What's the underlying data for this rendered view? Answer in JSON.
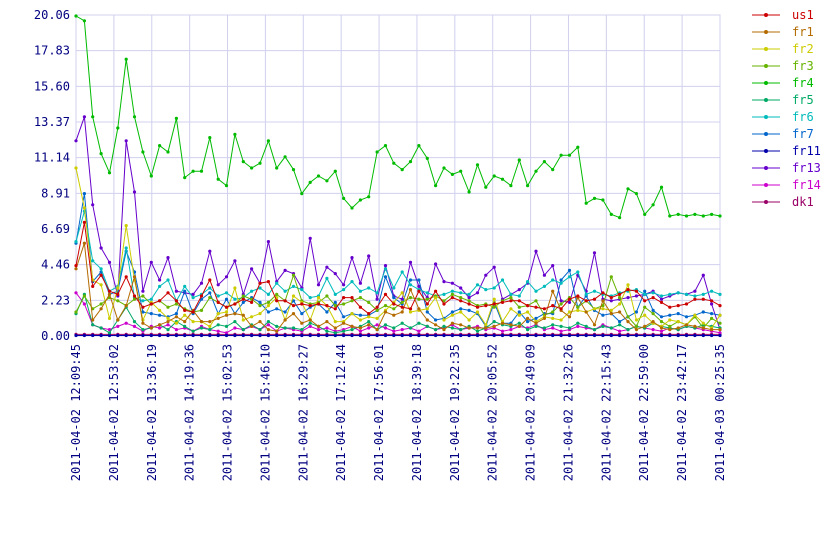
{
  "chart_data": {
    "type": "line",
    "ylim": [
      0,
      20.06
    ],
    "y_ticks": [
      "0.00",
      "2.23",
      "4.46",
      "6.69",
      "8.91",
      "11.14",
      "13.37",
      "15.60",
      "17.83",
      "20.06"
    ],
    "x_labels": [
      "2011-04-02 12:09:45",
      "2011-04-02 12:53:02",
      "2011-04-02 13:36:19",
      "2011-04-02 14:19:36",
      "2011-04-02 15:02:53",
      "2011-04-02 15:46:10",
      "2011-04-02 16:29:27",
      "2011-04-02 17:12:44",
      "2011-04-02 17:56:01",
      "2011-04-02 18:39:18",
      "2011-04-02 19:22:35",
      "2011-04-02 20:05:52",
      "2011-04-02 20:49:09",
      "2011-04-02 21:32:26",
      "2011-04-02 22:15:43",
      "2011-04-02 22:59:00",
      "2011-04-02 23:42:17",
      "2011-04-03 00:25:35"
    ],
    "points_per_series": 78,
    "grid": true,
    "legend_position": "right",
    "series": [
      {
        "name": "us1",
        "color": "#cc0000",
        "values": [
          4.4,
          7.1,
          3.1,
          3.8,
          2.8,
          2.6,
          3.7,
          2.5,
          1.8,
          2.0,
          2.2,
          2.7,
          2.2,
          1.6,
          1.5,
          2.5,
          3.5,
          2.1,
          1.8,
          2.0,
          2.3,
          2.1,
          3.3,
          3.4,
          2.2,
          2.2,
          1.9,
          2.0,
          1.9,
          2.0,
          1.9,
          1.7,
          2.4,
          2.4,
          1.8,
          1.4,
          1.8,
          2.6,
          2.0,
          1.8,
          1.7,
          2.8,
          2.0,
          2.8,
          2.0,
          2.4,
          2.2,
          2.0,
          1.8,
          1.9,
          2.0,
          2.1,
          2.2,
          2.2,
          1.9,
          1.8,
          1.7,
          1.9,
          1.7,
          2.3,
          2.5,
          2.2,
          2.3,
          2.7,
          2.4,
          2.6,
          2.9,
          2.8,
          2.2,
          2.4,
          2.1,
          1.8,
          1.9,
          2.0,
          2.3,
          2.3,
          2.2,
          1.9
        ]
      },
      {
        "name": "fr1",
        "color": "#b36b00",
        "values": [
          4.2,
          5.8,
          1.0,
          1.7,
          2.6,
          1.0,
          1.9,
          3.7,
          0.8,
          0.5,
          0.7,
          0.9,
          1.2,
          0.9,
          1.6,
          0.9,
          0.9,
          1.1,
          1.3,
          1.4,
          1.3,
          0.6,
          0.9,
          0.4,
          0.3,
          1.0,
          1.4,
          0.8,
          1.0,
          0.6,
          0.9,
          0.5,
          0.8,
          0.6,
          0.5,
          0.7,
          0.4,
          1.5,
          1.3,
          1.5,
          2.9,
          1.7,
          1.0,
          0.7,
          0.4,
          0.8,
          0.7,
          0.5,
          0.5,
          0.5,
          0.6,
          0.8,
          0.7,
          0.6,
          1.1,
          0.8,
          1.1,
          2.8,
          1.6,
          1.2,
          2.4,
          1.5,
          0.7,
          2.2,
          1.4,
          1.5,
          0.9,
          0.4,
          0.6,
          0.9,
          0.5,
          0.4,
          0.5,
          0.7,
          0.6,
          0.5,
          0.4,
          0.4
        ]
      },
      {
        "name": "fr2",
        "color": "#cccc00",
        "values": [
          10.5,
          8.0,
          3.5,
          3.2,
          1.1,
          3.0,
          6.9,
          3.5,
          1.0,
          2.1,
          1.6,
          1.1,
          0.8,
          1.3,
          0.9,
          0.9,
          0.6,
          1.4,
          1.5,
          3.0,
          1.0,
          1.2,
          1.4,
          1.9,
          2.4,
          1.0,
          2.5,
          2.1,
          1.0,
          2.4,
          1.9,
          0.9,
          0.9,
          1.4,
          1.0,
          1.2,
          1.1,
          1.6,
          2.1,
          2.7,
          1.5,
          1.6,
          1.7,
          2.4,
          1.0,
          1.3,
          1.5,
          1.0,
          1.5,
          0.7,
          2.3,
          0.9,
          1.7,
          1.3,
          1.5,
          0.9,
          1.2,
          1.1,
          1.0,
          1.5,
          1.6,
          1.5,
          1.7,
          1.7,
          1.6,
          2.0,
          3.2,
          1.0,
          1.3,
          0.8,
          0.6,
          1.0,
          0.9,
          0.7,
          1.3,
          0.8,
          0.5,
          1.3
        ]
      },
      {
        "name": "fr3",
        "color": "#66b300",
        "values": [
          1.5,
          2.5,
          1.7,
          2.0,
          2.4,
          2.2,
          1.9,
          2.3,
          2.5,
          2.0,
          2.2,
          1.8,
          2.0,
          1.7,
          1.5,
          1.6,
          2.4,
          2.1,
          1.8,
          2.0,
          2.5,
          2.3,
          1.9,
          2.1,
          2.6,
          2.2,
          3.8,
          2.2,
          2.0,
          2.1,
          2.5,
          1.9,
          2.0,
          2.2,
          2.4,
          2.1,
          1.6,
          1.9,
          1.7,
          2.1,
          2.4,
          2.3,
          2.3,
          2.5,
          2.2,
          2.6,
          2.4,
          2.2,
          1.9,
          2.0,
          1.8,
          2.2,
          2.4,
          1.8,
          1.9,
          2.2,
          1.3,
          1.5,
          2.0,
          2.4,
          1.8,
          2.2,
          1.7,
          1.9,
          3.7,
          2.4,
          1.2,
          0.6,
          1.8,
          1.4,
          0.9,
          0.6,
          0.9,
          0.7,
          1.2,
          0.5,
          1.1,
          0.8
        ]
      },
      {
        "name": "fr4",
        "color": "#00bb00",
        "values": [
          20.0,
          19.7,
          13.7,
          11.4,
          10.2,
          13.0,
          17.3,
          13.7,
          11.5,
          10.0,
          11.9,
          11.5,
          13.6,
          9.9,
          10.3,
          10.3,
          12.4,
          9.8,
          9.4,
          12.6,
          10.9,
          10.5,
          10.8,
          12.2,
          10.5,
          11.2,
          10.4,
          8.9,
          9.6,
          10.0,
          9.7,
          10.3,
          8.6,
          8.0,
          8.5,
          8.7,
          11.5,
          11.9,
          10.8,
          10.4,
          10.9,
          11.9,
          11.1,
          9.4,
          10.5,
          10.1,
          10.3,
          9.0,
          10.7,
          9.3,
          10.0,
          9.8,
          9.4,
          11.0,
          9.4,
          10.3,
          10.9,
          10.4,
          11.3,
          11.3,
          11.8,
          8.3,
          8.6,
          8.5,
          7.6,
          7.4,
          9.2,
          8.9,
          7.6,
          8.2,
          9.3,
          7.5,
          7.6,
          7.5,
          7.6,
          7.5,
          7.6,
          7.5
        ]
      },
      {
        "name": "fr5",
        "color": "#00aa66",
        "values": [
          1.4,
          2.6,
          0.7,
          0.5,
          0.2,
          1.0,
          1.8,
          0.9,
          0.4,
          0.5,
          0.7,
          0.4,
          0.9,
          0.6,
          0.3,
          0.5,
          0.4,
          0.7,
          0.6,
          0.9,
          0.4,
          0.7,
          0.4,
          0.9,
          0.6,
          0.5,
          0.5,
          0.4,
          0.8,
          0.6,
          0.3,
          0.2,
          0.3,
          0.4,
          0.6,
          0.9,
          0.4,
          0.7,
          0.5,
          0.8,
          0.5,
          0.8,
          0.6,
          0.4,
          0.6,
          0.5,
          0.4,
          0.6,
          0.3,
          0.5,
          0.9,
          0.7,
          0.6,
          0.8,
          0.4,
          0.6,
          0.5,
          0.7,
          0.6,
          0.5,
          0.8,
          0.6,
          0.4,
          0.6,
          0.5,
          0.7,
          0.4,
          0.6,
          0.5,
          0.8,
          0.6,
          0.5,
          0.4,
          0.6,
          0.5,
          0.7,
          0.6,
          0.5
        ]
      },
      {
        "name": "fr6",
        "color": "#00bbbb",
        "values": [
          5.9,
          7.8,
          4.7,
          4.2,
          2.8,
          3.1,
          5.5,
          2.4,
          2.2,
          2.3,
          3.1,
          3.5,
          2.2,
          3.1,
          2.4,
          2.6,
          3.0,
          2.5,
          2.7,
          2.3,
          2.4,
          2.8,
          3.0,
          2.6,
          3.3,
          2.8,
          3.1,
          2.9,
          2.4,
          2.5,
          3.6,
          2.6,
          2.9,
          3.4,
          2.8,
          3.0,
          2.7,
          4.2,
          3.0,
          4.0,
          3.2,
          2.9,
          2.7,
          2.5,
          2.6,
          2.8,
          2.7,
          2.6,
          3.2,
          2.9,
          3.0,
          3.5,
          2.6,
          2.5,
          3.4,
          2.8,
          3.1,
          3.5,
          3.3,
          3.7,
          4.0,
          2.6,
          2.8,
          2.6,
          2.5,
          2.7,
          2.8,
          2.9,
          2.6,
          2.7,
          2.5,
          2.6,
          2.7,
          2.6,
          2.5,
          2.6,
          2.8,
          2.6
        ]
      },
      {
        "name": "fr7",
        "color": "#0066cc",
        "values": [
          5.8,
          8.9,
          3.4,
          4.0,
          2.6,
          2.8,
          5.3,
          4.0,
          1.5,
          1.4,
          1.3,
          1.2,
          1.4,
          2.8,
          1.4,
          2.3,
          2.7,
          1.4,
          2.3,
          1.4,
          2.1,
          2.4,
          2.1,
          1.5,
          1.7,
          1.5,
          2.2,
          1.4,
          1.8,
          2.0,
          1.5,
          2.1,
          1.2,
          1.4,
          1.3,
          1.3,
          1.6,
          3.7,
          2.4,
          2.0,
          3.5,
          3.5,
          1.5,
          1.0,
          1.1,
          1.5,
          1.7,
          1.6,
          1.4,
          0.6,
          2.1,
          0.8,
          0.8,
          1.5,
          0.9,
          1.1,
          1.4,
          1.4,
          3.5,
          4.1,
          1.8,
          2.5,
          1.6,
          1.3,
          1.4,
          0.9,
          1.2,
          1.5,
          2.8,
          1.6,
          1.2,
          1.3,
          1.4,
          1.2,
          1.3,
          1.5,
          1.4,
          1.3
        ]
      },
      {
        "name": "fr11",
        "color": "#0000aa",
        "values": [
          0.03,
          0.03,
          0.03,
          0.03,
          0.03,
          0.03,
          0.03,
          0.03,
          0.03,
          0.03,
          0.03,
          0.03,
          0.03,
          0.03,
          0.03,
          0.03,
          0.03,
          0.03,
          0.03,
          0.03,
          0.03,
          0.03,
          0.03,
          0.03,
          0.03,
          0.03,
          0.03,
          0.03,
          0.03,
          0.03,
          0.03,
          0.03,
          0.03,
          0.03,
          0.03,
          0.03,
          0.03,
          0.03,
          0.03,
          0.03,
          0.03,
          0.03,
          0.03,
          0.03,
          0.03,
          0.03,
          0.03,
          0.03,
          0.03,
          0.03,
          0.03,
          0.03,
          0.03,
          0.03,
          0.03,
          0.03,
          0.03,
          0.03,
          0.03,
          0.03,
          0.03,
          0.03,
          0.03,
          0.03,
          0.03,
          0.03,
          0.03,
          0.03,
          0.03,
          0.03,
          0.03,
          0.03,
          0.03,
          0.03,
          0.03,
          0.03,
          0.03,
          0.03
        ]
      },
      {
        "name": "fr13",
        "color": "#6600cc",
        "values": [
          12.2,
          13.7,
          8.2,
          5.5,
          4.6,
          2.5,
          12.2,
          9.0,
          2.8,
          4.6,
          3.5,
          4.9,
          2.8,
          2.7,
          2.6,
          3.3,
          5.3,
          3.2,
          3.7,
          4.7,
          2.6,
          4.2,
          3.3,
          5.9,
          3.4,
          4.1,
          3.9,
          3.0,
          6.1,
          3.2,
          4.3,
          3.9,
          3.2,
          4.9,
          3.3,
          5.0,
          2.3,
          4.4,
          2.5,
          2.3,
          4.6,
          3.1,
          2.4,
          4.5,
          3.4,
          3.3,
          3.0,
          2.4,
          2.7,
          3.8,
          4.3,
          2.3,
          2.6,
          2.9,
          3.3,
          5.3,
          3.8,
          4.4,
          2.2,
          2.1,
          3.8,
          2.8,
          5.2,
          2.3,
          2.2,
          2.3,
          2.4,
          2.5,
          2.6,
          2.8,
          2.3,
          2.5,
          2.7,
          2.6,
          2.8,
          3.8,
          2.0,
          0.4
        ]
      },
      {
        "name": "fr14",
        "color": "#cc00cc",
        "values": [
          2.7,
          2.0,
          0.7,
          0.5,
          0.4,
          0.6,
          0.8,
          0.6,
          0.3,
          0.6,
          0.5,
          0.7,
          0.4,
          0.5,
          0.3,
          0.6,
          0.4,
          0.3,
          0.2,
          0.5,
          0.4,
          0.6,
          0.4,
          0.7,
          0.3,
          0.5,
          0.4,
          0.3,
          0.6,
          0.4,
          0.5,
          0.3,
          0.4,
          0.6,
          0.3,
          0.5,
          0.7,
          0.5,
          0.3,
          0.4,
          0.5,
          0.3,
          0.6,
          0.4,
          0.5,
          0.7,
          0.4,
          0.5,
          0.6,
          0.4,
          0.5,
          0.3,
          0.4,
          0.6,
          0.5,
          0.7,
          0.4,
          0.5,
          0.3,
          0.4,
          0.6,
          0.5,
          0.4,
          0.7,
          0.5,
          0.3,
          0.4,
          0.6,
          0.5,
          0.4,
          0.3,
          0.5,
          0.4,
          0.6,
          0.5,
          0.4,
          0.3,
          0.2
        ]
      },
      {
        "name": "dk1",
        "color": "#990066",
        "values": [
          0.1,
          0.1,
          0.1,
          0.1,
          0.1,
          0.1,
          0.1,
          0.1,
          0.1,
          0.1,
          0.1,
          0.1,
          0.1,
          0.1,
          0.1,
          0.1,
          0.1,
          0.1,
          0.1,
          0.1,
          0.1,
          0.1,
          0.1,
          0.1,
          0.1,
          0.1,
          0.1,
          0.1,
          0.1,
          0.1,
          0.1,
          0.1,
          0.1,
          0.1,
          0.1,
          0.1,
          0.1,
          0.1,
          0.1,
          0.1,
          0.1,
          0.1,
          0.1,
          0.1,
          0.1,
          0.1,
          0.1,
          0.1,
          0.1,
          0.1,
          0.1,
          0.1,
          0.1,
          0.1,
          0.1,
          0.1,
          0.1,
          0.1,
          0.1,
          0.1,
          0.1,
          0.1,
          0.1,
          0.1,
          0.1,
          0.1,
          0.1,
          0.1,
          0.1,
          0.1,
          0.1,
          0.1,
          0.1,
          0.1,
          0.1,
          0.1,
          0.1,
          0.1
        ]
      }
    ]
  }
}
